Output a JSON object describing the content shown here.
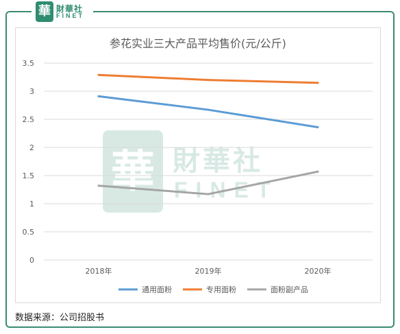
{
  "logo": {
    "cn": "財華社",
    "en": "FINET",
    "badge": "華"
  },
  "watermark": {
    "cn": "財華社",
    "en": "FINET",
    "badge": "華"
  },
  "source_note": "数据来源：公司招股书",
  "chart_data": {
    "type": "line",
    "title": "参花实业三大产品平均售价(元/公斤)",
    "categories": [
      "2018年",
      "2019年",
      "2020年"
    ],
    "series": [
      {
        "name": "通用面粉",
        "values": [
          2.91,
          2.67,
          2.36
        ],
        "color": "#5b9bd5"
      },
      {
        "name": "专用面粉",
        "values": [
          3.29,
          3.2,
          3.15
        ],
        "color": "#ed7d31"
      },
      {
        "name": "面粉副产品",
        "values": [
          1.32,
          1.17,
          1.57
        ],
        "color": "#a5a5a5"
      }
    ],
    "ylim": [
      0,
      3.5
    ],
    "yticks": [
      "0",
      "0.5",
      "1",
      "1.5",
      "2",
      "2.5",
      "3",
      "3.5"
    ],
    "grid": true,
    "legend": "bottom"
  }
}
